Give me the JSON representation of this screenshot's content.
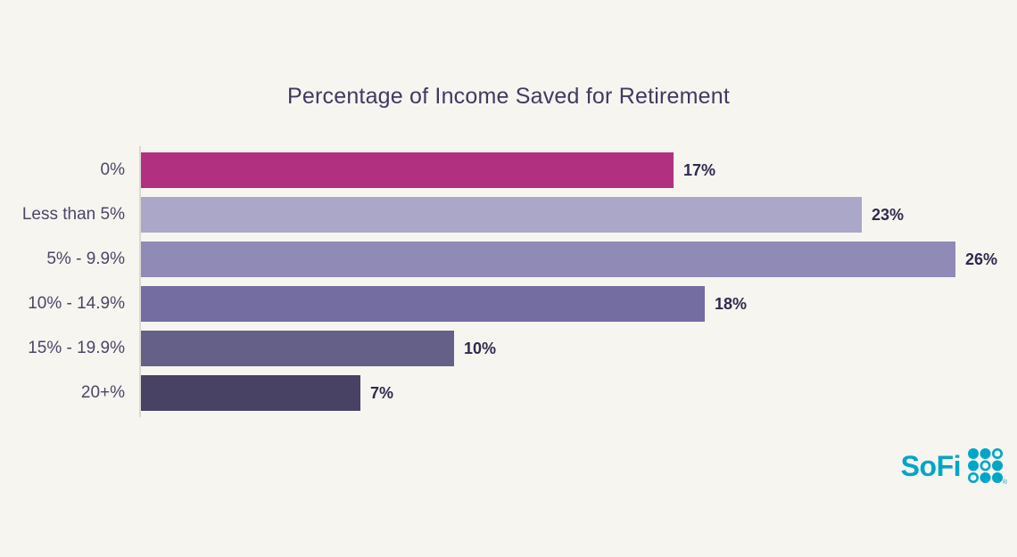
{
  "page": {
    "background": "#f7f5f0"
  },
  "chart_data": {
    "type": "bar",
    "orientation": "horizontal",
    "title": "Percentage of Income Saved for Retirement",
    "categories": [
      "0%",
      "Less than 5%",
      "5% - 9.9%",
      "10% - 14.9%",
      "15% - 19.9%",
      "20+%"
    ],
    "values": [
      17,
      23,
      26,
      18,
      10,
      7
    ],
    "value_labels": [
      "17%",
      "23%",
      "26%",
      "18%",
      "10%",
      "7%"
    ],
    "bar_colors": [
      "#b13180",
      "#aba7c9",
      "#8f8ab6",
      "#736da2",
      "#656087",
      "#484264"
    ],
    "xlabel": "",
    "ylabel": "",
    "xlim": [
      0,
      26
    ],
    "grid": false,
    "legend": false,
    "value_labels_position": "end-of-bar",
    "title_color": "#3f3b60",
    "category_label_color": "#4b4766",
    "value_label_color": "#2f2b4e",
    "axis_line_color": "#dcd9d2"
  },
  "branding": {
    "logo_text": "SoFi",
    "logo_color": "#00a6c7",
    "registered_mark": "®",
    "dot_grid": [
      [
        1,
        1,
        0
      ],
      [
        1,
        0,
        1
      ],
      [
        0,
        1,
        1
      ]
    ]
  }
}
